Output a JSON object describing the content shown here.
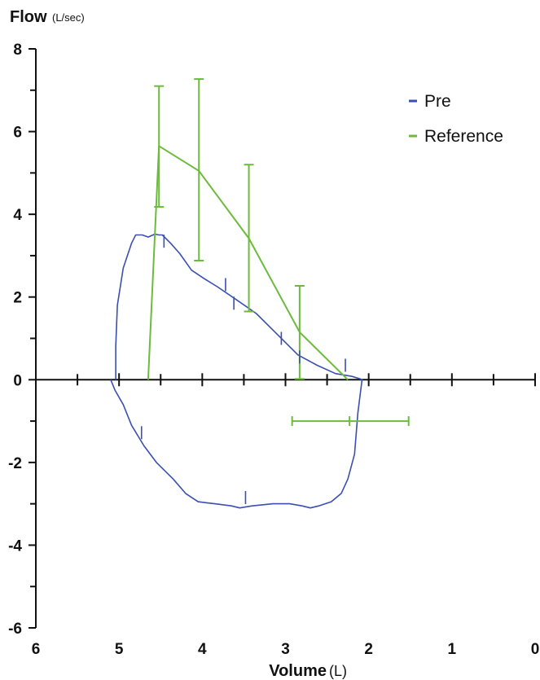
{
  "chart_data": {
    "type": "line",
    "y_axis_title": "Flow",
    "y_axis_unit": "(L/sec)",
    "x_axis_title": "Volume",
    "x_axis_unit": "(L)",
    "x_reversed": true,
    "xlim": [
      6,
      0
    ],
    "ylim": [
      -6,
      8
    ],
    "x_ticks": [
      6,
      5,
      4,
      3,
      2,
      1,
      0
    ],
    "y_ticks": [
      8,
      6,
      4,
      2,
      0,
      -2,
      -4,
      -6
    ],
    "grid": false,
    "legend_position": "top-right",
    "colors": {
      "Pre": "#3a4fb0",
      "Reference": "#6cbb3c",
      "axis": "#111111"
    },
    "series": [
      {
        "name": "Pre",
        "color": "#3a4fb0",
        "x": [
          5.04,
          5.04,
          5.02,
          4.95,
          4.85,
          4.8,
          4.72,
          4.65,
          4.57,
          4.52,
          4.48,
          4.38,
          4.27,
          4.13,
          3.98,
          3.82,
          3.6,
          3.35,
          3.1,
          2.85,
          2.62,
          2.4,
          2.2,
          2.1,
          2.08,
          2.13,
          2.17,
          2.25,
          2.33,
          2.45,
          2.6,
          2.7,
          2.8,
          2.95,
          3.15,
          3.4,
          3.55,
          3.65,
          3.85,
          4.05,
          4.2,
          4.35,
          4.55,
          4.7,
          4.85,
          4.95,
          5.05,
          5.1
        ],
        "y": [
          0.0,
          0.8,
          1.8,
          2.7,
          3.3,
          3.5,
          3.5,
          3.45,
          3.52,
          3.5,
          3.5,
          3.3,
          3.05,
          2.65,
          2.45,
          2.25,
          1.95,
          1.6,
          1.1,
          0.6,
          0.35,
          0.15,
          0.08,
          0.02,
          0.0,
          -0.8,
          -1.8,
          -2.4,
          -2.75,
          -2.95,
          -3.05,
          -3.1,
          -3.05,
          -3.0,
          -3.0,
          -3.05,
          -3.1,
          -3.05,
          -3.0,
          -2.95,
          -2.75,
          -2.4,
          -2.0,
          -1.6,
          -1.1,
          -0.6,
          -0.25,
          0.0
        ]
      },
      {
        "name": "Reference",
        "color": "#6cbb3c",
        "x": [
          4.65,
          4.52,
          4.04,
          3.44,
          2.83,
          2.25
        ],
        "y": [
          0.0,
          5.65,
          5.05,
          3.42,
          1.15,
          0.0
        ]
      }
    ],
    "error_bars": [
      {
        "x": 4.52,
        "y_low": 4.18,
        "y_high": 7.1
      },
      {
        "x": 4.04,
        "y_low": 2.88,
        "y_high": 7.27
      },
      {
        "x": 3.44,
        "y_low": 1.65,
        "y_high": 5.2
      },
      {
        "x": 2.83,
        "y_low": 0.02,
        "y_high": 2.27
      }
    ],
    "x_error_bar": {
      "y": -1.0,
      "x_center": 2.23,
      "x_low": 2.92,
      "x_high": 1.52
    },
    "pre_markers": [
      {
        "x": 4.46,
        "y": 3.35
      },
      {
        "x": 3.72,
        "y": 2.3
      },
      {
        "x": 3.62,
        "y": 1.85
      },
      {
        "x": 3.05,
        "y": 1.0
      },
      {
        "x": 2.83,
        "y": 0.55
      },
      {
        "x": 2.28,
        "y": 0.35
      },
      {
        "x": 4.73,
        "y": -1.28
      },
      {
        "x": 3.48,
        "y": -2.85
      }
    ]
  }
}
